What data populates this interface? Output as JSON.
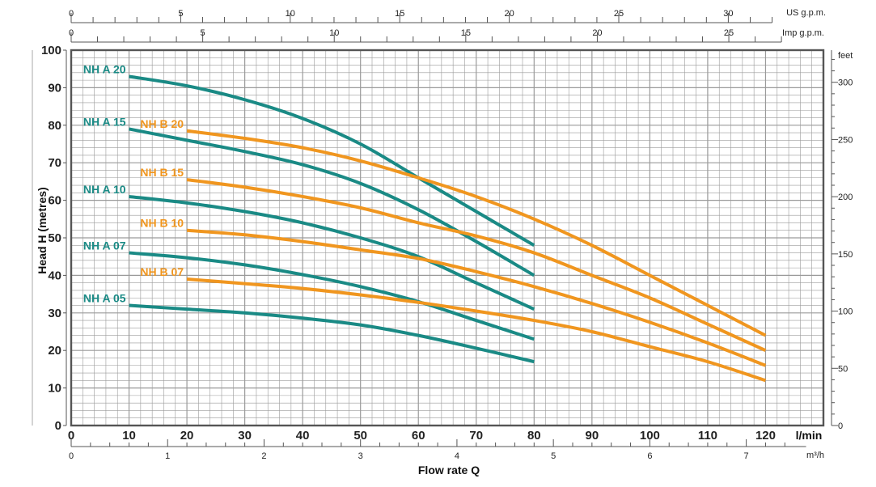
{
  "chart_data": {
    "type": "line",
    "title": "",
    "xlabel": "Flow rate Q",
    "xunit": "l/min",
    "ylabel": "Head H (metres)",
    "xlim": [
      0,
      130
    ],
    "ylim": [
      0,
      100
    ],
    "grid": true,
    "x_ticks": [
      "0",
      "10",
      "20",
      "30",
      "40",
      "50",
      "60",
      "70",
      "80",
      "90",
      "100",
      "110",
      "120"
    ],
    "y_ticks": [
      "0",
      "10",
      "20",
      "30",
      "40",
      "50",
      "60",
      "70",
      "80",
      "90",
      "100"
    ],
    "right_axis": {
      "unit": "feet",
      "ticks": [
        "0",
        "50",
        "100",
        "150",
        "200",
        "250",
        "300"
      ]
    },
    "top_axes": [
      {
        "unit": "US g.p.m.",
        "ticks": [
          "0",
          "5",
          "10",
          "15",
          "20",
          "25",
          "30"
        ]
      },
      {
        "unit": "Imp g.p.m.",
        "ticks": [
          "0",
          "5",
          "10",
          "15",
          "20",
          "25"
        ]
      }
    ],
    "bottom_axis2": {
      "unit": "m³/h",
      "ticks": [
        "0",
        "1",
        "2",
        "3",
        "4",
        "5",
        "6",
        "7"
      ]
    },
    "colors": {
      "NH A": "#1a8a85",
      "NH B": "#f0961f",
      "grid": "#9a9a9a"
    },
    "series": [
      {
        "name": "NH A 20",
        "color": "#1a8a85",
        "x": [
          10,
          20,
          30,
          40,
          50,
          60,
          70,
          80
        ],
        "y": [
          93,
          90.5,
          86.8,
          81.8,
          75,
          66,
          57,
          48
        ]
      },
      {
        "name": "NH A 15",
        "color": "#1a8a85",
        "x": [
          10,
          20,
          30,
          40,
          50,
          60,
          70,
          80
        ],
        "y": [
          79,
          76,
          73,
          69.5,
          64.5,
          57.5,
          49,
          40
        ]
      },
      {
        "name": "NH A 10",
        "color": "#1a8a85",
        "x": [
          10,
          20,
          30,
          40,
          50,
          60,
          70,
          80
        ],
        "y": [
          61,
          59.3,
          57,
          54,
          50,
          45,
          38,
          31
        ]
      },
      {
        "name": "NH A 07",
        "color": "#1a8a85",
        "x": [
          10,
          20,
          30,
          40,
          50,
          60,
          70,
          80
        ],
        "y": [
          46,
          44.7,
          42.8,
          40.2,
          37,
          33,
          28,
          23
        ]
      },
      {
        "name": "NH A 05",
        "color": "#1a8a85",
        "x": [
          10,
          20,
          30,
          40,
          50,
          60,
          70,
          80
        ],
        "y": [
          32,
          31,
          30,
          28.6,
          26.8,
          24,
          20.6,
          17
        ]
      },
      {
        "name": "NH B 20",
        "color": "#f0961f",
        "x": [
          20,
          30,
          40,
          50,
          60,
          70,
          80,
          90,
          100,
          110,
          120
        ],
        "y": [
          78.5,
          76.5,
          74,
          70.5,
          66,
          61,
          55,
          48,
          40,
          32,
          24
        ]
      },
      {
        "name": "NH B 15",
        "color": "#f0961f",
        "x": [
          20,
          30,
          40,
          50,
          60,
          70,
          80,
          90,
          100,
          110,
          120
        ],
        "y": [
          65.5,
          63.5,
          61,
          58,
          54,
          50.5,
          46,
          40,
          34,
          27,
          20
        ]
      },
      {
        "name": "NH B 10",
        "color": "#f0961f",
        "x": [
          20,
          30,
          40,
          50,
          60,
          70,
          80,
          90,
          100,
          110,
          120
        ],
        "y": [
          52,
          50.8,
          49,
          46.8,
          44.5,
          41,
          37,
          32.5,
          27.5,
          22,
          16
        ]
      },
      {
        "name": "NH B 07",
        "color": "#f0961f",
        "x": [
          20,
          30,
          40,
          50,
          60,
          70,
          80,
          90,
          100,
          110,
          120
        ],
        "y": [
          39,
          37.8,
          36.5,
          34.8,
          32.8,
          30.5,
          28,
          25,
          21,
          17,
          12
        ]
      }
    ]
  }
}
